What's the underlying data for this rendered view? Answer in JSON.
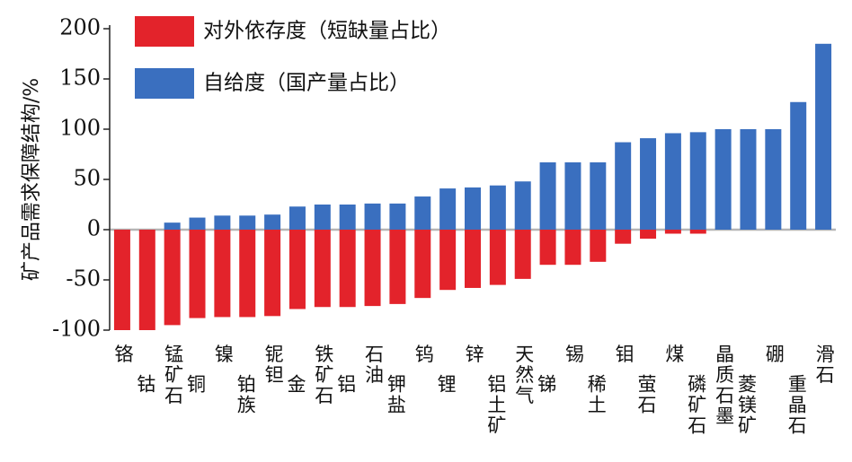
{
  "colors": {
    "negative": "#e3232b",
    "positive": "#3a6fbf",
    "zero_line": "#b5b5b5",
    "axis": "#222222"
  },
  "chart_data": {
    "type": "bar",
    "ylabel": "矿产品需求保障结构/%",
    "ylim": [
      -100,
      200
    ],
    "yticks": [
      -100,
      -50,
      0,
      50,
      100,
      150,
      200
    ],
    "legend_position": "top-left",
    "legend": [
      {
        "name": "对外依存度（短缺量占比）",
        "color": "#e3232b"
      },
      {
        "name": "自给度（国产量占比）",
        "color": "#3a6fbf"
      }
    ],
    "categories": [
      "铬",
      "钴",
      "锰矿石",
      "铜",
      "镍",
      "铂族",
      "铌钽",
      "金",
      "铁矿石",
      "铝",
      "石油",
      "钾盐",
      "钨",
      "锂",
      "锌",
      "铝土矿",
      "天然气",
      "锑",
      "锡",
      "稀土",
      "钼",
      "萤石",
      "煤",
      "磷矿石",
      "晶质石墨",
      "菱镁矿",
      "硼",
      "重晶石",
      "滑石"
    ],
    "series": [
      {
        "name": "对外依存度（短缺量占比）",
        "values": [
          -100,
          -100,
          -95,
          -88,
          -87,
          -87,
          -86,
          -79,
          -77,
          -77,
          -76,
          -74,
          -68,
          -60,
          -58,
          -55,
          -49,
          -35,
          -35,
          -32,
          -14,
          -9,
          -4,
          -4,
          0,
          0,
          0,
          0,
          0
        ]
      },
      {
        "name": "自给度（国产量占比）",
        "values": [
          0,
          0,
          7,
          12,
          14,
          14,
          15,
          23,
          25,
          25,
          26,
          26,
          33,
          41,
          42,
          44,
          48,
          67,
          67,
          67,
          87,
          91,
          96,
          97,
          100,
          100,
          100,
          127,
          185
        ]
      }
    ]
  }
}
